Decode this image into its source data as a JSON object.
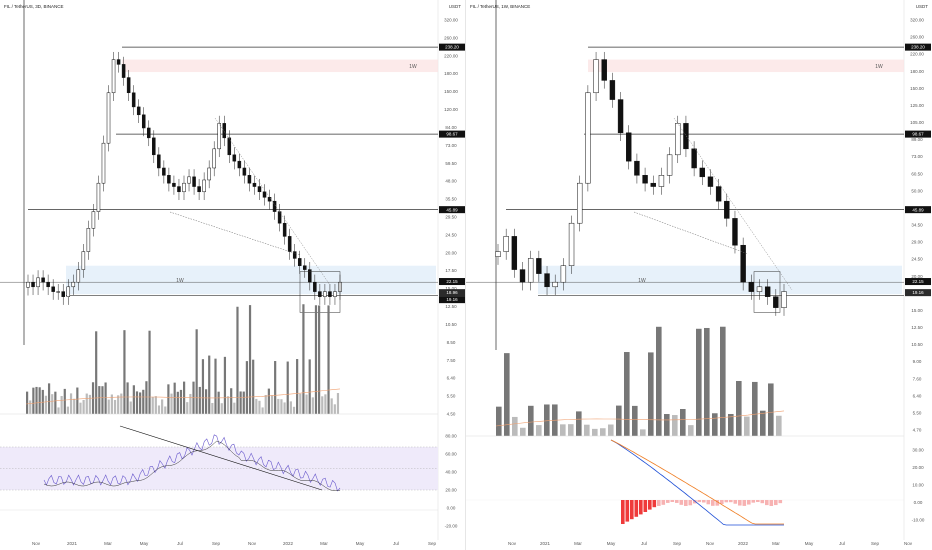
{
  "left_chart": {
    "title": "FIL / TetherUS, 3D, BINANCE",
    "currency": "USDT",
    "y_ticks": [
      "320.00",
      "260.00",
      "220.00",
      "180.00",
      "150.00",
      "120.00",
      "84.00",
      "73.00",
      "59.50",
      "48.00",
      "35.50",
      "29.50",
      "24.50",
      "20.00",
      "17.50",
      "15.00",
      "12.50",
      "10.50",
      "8.50",
      "7.50",
      "6.40",
      "5.50",
      "4.50"
    ],
    "x_ticks": [
      "Nov",
      "2021",
      "Mar",
      "May",
      "Jul",
      "Sep",
      "Nov",
      "2022",
      "Mar",
      "May",
      "Jul",
      "Sep"
    ],
    "price_tags": [
      "238.20",
      "98.67",
      "45.89",
      "22.15",
      "18.96",
      "19.16"
    ],
    "zone_label_top": "1W",
    "zone_label_mid": "1W",
    "rsi_ticks": [
      "80.00",
      "60.00",
      "40.00",
      "20.00",
      "0.00",
      "-20.00"
    ]
  },
  "right_chart": {
    "title": "FIL / TetherUS, 1W, BINANCE",
    "currency": "USDT",
    "y_ticks": [
      "320.00",
      "260.00",
      "220.00",
      "180.00",
      "150.00",
      "125.00",
      "105.00",
      "89.00",
      "73.00",
      "60.50",
      "50.00",
      "41.50",
      "34.50",
      "29.00",
      "24.50",
      "20.00",
      "17.50",
      "15.00",
      "12.50",
      "10.50",
      "9.00",
      "7.60",
      "6.40",
      "5.50",
      "4.70"
    ],
    "x_ticks": [
      "Nov",
      "2021",
      "Mar",
      "May",
      "Jul",
      "Sep",
      "Nov",
      "2022",
      "Mar",
      "May",
      "Jul",
      "Sep",
      "Nov"
    ],
    "price_tags": [
      "238.20",
      "98.67",
      "45.89",
      "22.15",
      "19.16"
    ],
    "zone_label_top": "1W",
    "zone_label_mid": "1W",
    "macd_ticks": [
      "30.00",
      "20.00",
      "10.00",
      "0.00",
      "-10.00"
    ]
  },
  "chart_data": [
    {
      "type": "candlestick",
      "title": "FIL / TetherUS, 3D, BINANCE",
      "timeframe": "3D",
      "price_close": [
        22,
        21,
        23,
        22,
        21,
        20,
        20,
        19,
        21,
        22,
        25,
        30,
        38,
        45,
        60,
        90,
        150,
        210,
        200,
        175,
        150,
        130,
        120,
        105,
        95,
        80,
        70,
        65,
        60,
        58,
        55,
        60,
        64,
        58,
        55,
        62,
        70,
        85,
        110,
        95,
        80,
        75,
        70,
        65,
        60,
        58,
        55,
        52,
        50,
        45,
        40,
        35,
        30,
        28,
        26,
        25,
        22,
        20,
        19,
        20,
        19,
        20,
        22
      ],
      "key_levels": [
        238.2,
        98.67,
        45.89,
        22.15,
        18.96,
        19.16
      ],
      "indicator": "RSI"
    },
    {
      "type": "candlestick",
      "title": "FIL / TetherUS, 1W, BINANCE",
      "timeframe": "1W",
      "price_close": [
        30,
        35,
        25,
        22,
        28,
        24,
        21,
        22,
        26,
        40,
        60,
        150,
        210,
        170,
        140,
        100,
        75,
        65,
        60,
        58,
        65,
        80,
        110,
        85,
        70,
        64,
        58,
        50,
        42,
        32,
        22,
        20,
        21,
        19,
        17,
        20
      ],
      "key_levels": [
        238.2,
        98.67,
        45.89,
        22.15,
        19.16
      ],
      "indicator": "MACD"
    }
  ]
}
